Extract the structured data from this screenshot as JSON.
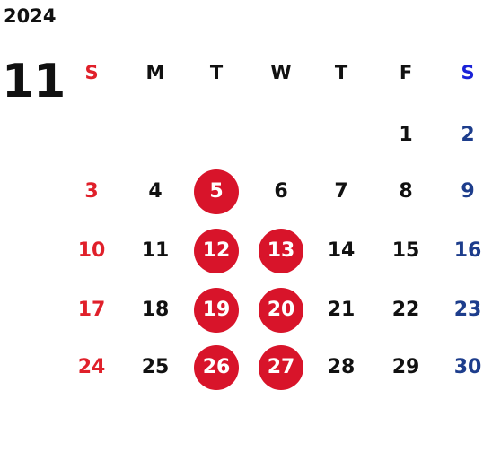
{
  "calendar": {
    "year": "2024",
    "month": "11",
    "weekdays": [
      "S",
      "M",
      "T",
      "W",
      "T",
      "F",
      "S"
    ],
    "weeks": [
      [
        null,
        null,
        null,
        null,
        null,
        "1",
        "2"
      ],
      [
        "3",
        "4",
        "5",
        "6",
        "7",
        "8",
        "9"
      ],
      [
        "10",
        "11",
        "12",
        "13",
        "14",
        "15",
        "16"
      ],
      [
        "17",
        "18",
        "19",
        "20",
        "21",
        "22",
        "23"
      ],
      [
        "24",
        "25",
        "26",
        "27",
        "28",
        "29",
        "30"
      ]
    ],
    "highlighted_days": [
      "5",
      "12",
      "13",
      "19",
      "20",
      "26",
      "27"
    ]
  },
  "colors": {
    "sunday": "#e0202a",
    "saturday_header": "#1a22d8",
    "saturday": "#1d3d8c",
    "highlight_circle": "#d8142a",
    "text": "#111111"
  }
}
